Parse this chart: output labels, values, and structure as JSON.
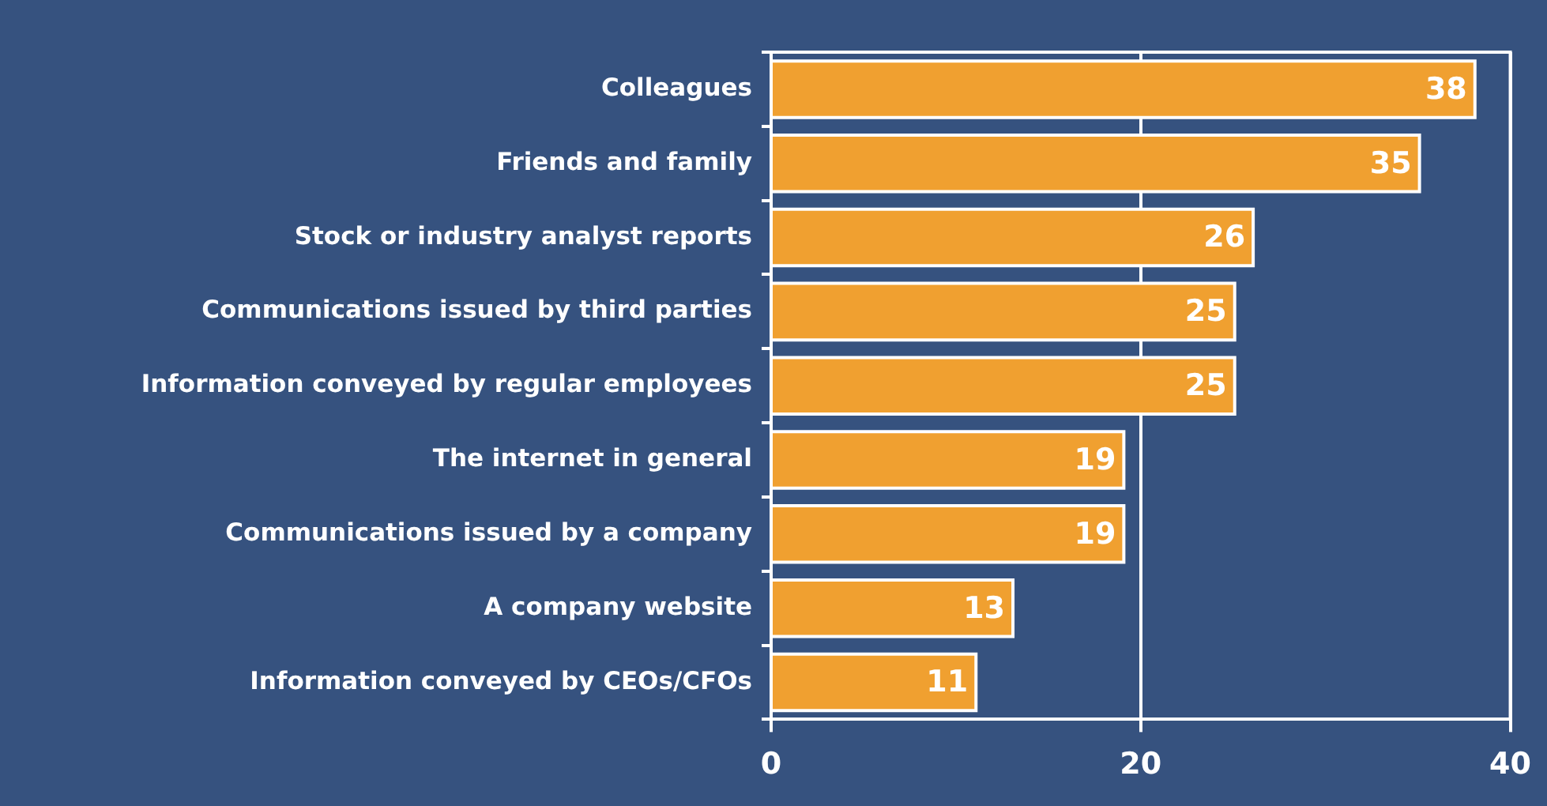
{
  "chart_data": {
    "type": "bar",
    "orientation": "horizontal",
    "categories": [
      "Colleagues",
      "Friends and family",
      "Stock or industry analyst reports",
      "Communications issued by third parties",
      "Information conveyed by regular employees",
      "The internet in general",
      "Communications issued by a company",
      "A company website",
      "Information conveyed by CEOs/CFOs"
    ],
    "values": [
      38,
      35,
      26,
      25,
      25,
      19,
      19,
      13,
      11
    ],
    "color": "#f0a030",
    "xlim": [
      0,
      40
    ],
    "xticks": [
      0,
      20,
      40
    ],
    "grid": "x",
    "data_labels": true
  }
}
